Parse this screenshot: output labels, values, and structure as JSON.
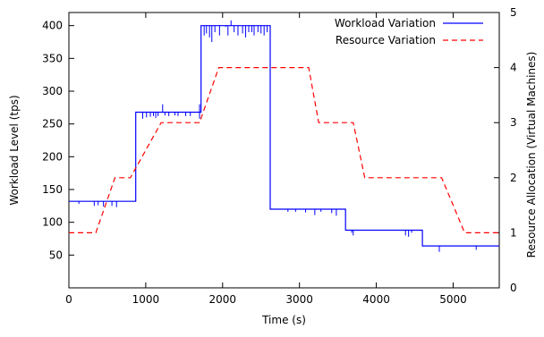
{
  "chart_data": {
    "type": "line",
    "xlabel": "Time (s)",
    "ylabel_left": "Workload Level (tps)",
    "ylabel_right": "Resource Allocation (Virtual Machines)",
    "xlim": [
      0,
      5600
    ],
    "ylim_left": [
      0,
      420
    ],
    "ylim_right": [
      0,
      5
    ],
    "x_ticks": [
      0,
      1000,
      2000,
      3000,
      4000,
      5000
    ],
    "y_left_ticks": [
      50,
      100,
      150,
      200,
      250,
      300,
      350,
      400
    ],
    "y_right_ticks": [
      0,
      1,
      2,
      3,
      4,
      5
    ],
    "legend_position": "top-right",
    "series": [
      {
        "name": "Workload Variation",
        "axis": "left",
        "style": "solid",
        "color": "#0000ff",
        "x": [
          0,
          870,
          870,
          1720,
          1720,
          2620,
          2620,
          3600,
          3600,
          4600,
          4600,
          5600
        ],
        "y": [
          132,
          132,
          268,
          268,
          400,
          400,
          120,
          120,
          88,
          88,
          64,
          64
        ],
        "spikes": [
          [
            130,
            132,
            128
          ],
          [
            330,
            132,
            125
          ],
          [
            380,
            132,
            126
          ],
          [
            450,
            132,
            124
          ],
          [
            560,
            132,
            125
          ],
          [
            620,
            132,
            123
          ],
          [
            960,
            268,
            258
          ],
          [
            1010,
            268,
            260
          ],
          [
            1060,
            268,
            261
          ],
          [
            1100,
            268,
            262
          ],
          [
            1130,
            268,
            259
          ],
          [
            1160,
            268,
            262
          ],
          [
            1220,
            268,
            280
          ],
          [
            1250,
            268,
            263
          ],
          [
            1300,
            268,
            262
          ],
          [
            1380,
            268,
            263
          ],
          [
            1420,
            268,
            262
          ],
          [
            1520,
            268,
            262
          ],
          [
            1580,
            268,
            262
          ],
          [
            1700,
            268,
            280
          ],
          [
            1700,
            268,
            258
          ],
          [
            1760,
            400,
            385
          ],
          [
            1790,
            400,
            388
          ],
          [
            1830,
            400,
            382
          ],
          [
            1860,
            400,
            375
          ],
          [
            1900,
            400,
            390
          ],
          [
            1960,
            400,
            385
          ],
          [
            2040,
            400,
            398
          ],
          [
            2070,
            400,
            385
          ],
          [
            2110,
            400,
            408
          ],
          [
            2150,
            400,
            390
          ],
          [
            2200,
            400,
            385
          ],
          [
            2260,
            400,
            388
          ],
          [
            2300,
            400,
            382
          ],
          [
            2340,
            400,
            390
          ],
          [
            2380,
            400,
            390
          ],
          [
            2410,
            400,
            385
          ],
          [
            2460,
            400,
            390
          ],
          [
            2500,
            400,
            388
          ],
          [
            2540,
            400,
            385
          ],
          [
            2580,
            400,
            390
          ],
          [
            2850,
            120,
            116
          ],
          [
            2950,
            120,
            116
          ],
          [
            3080,
            120,
            115
          ],
          [
            3200,
            120,
            111
          ],
          [
            3280,
            120,
            116
          ],
          [
            3420,
            120,
            114
          ],
          [
            3480,
            120,
            110
          ],
          [
            3680,
            88,
            84
          ],
          [
            3700,
            88,
            80
          ],
          [
            4380,
            88,
            80
          ],
          [
            4420,
            88,
            78
          ],
          [
            4460,
            88,
            84
          ],
          [
            4820,
            64,
            55
          ],
          [
            5300,
            64,
            58
          ]
        ]
      },
      {
        "name": "Resource Variation",
        "axis": "right",
        "style": "dashed",
        "color": "#ff0000",
        "x": [
          0,
          350,
          600,
          800,
          1200,
          1700,
          1950,
          3120,
          3250,
          3700,
          3850,
          4850,
          5150,
          5600
        ],
        "y": [
          1,
          1,
          2,
          2,
          3,
          3,
          4,
          4,
          3,
          3,
          2,
          2,
          1,
          1
        ]
      }
    ]
  }
}
